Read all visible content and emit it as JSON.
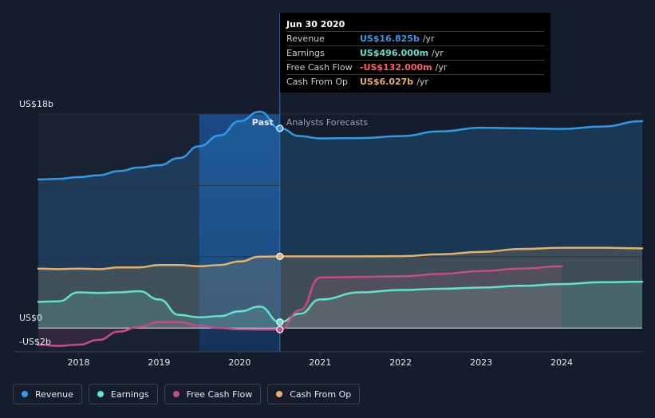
{
  "colors": {
    "revenue": "#2f9ae6",
    "earnings": "#5fe3cd",
    "free_cash_flow": "#c44d84",
    "cash_from_op": "#e5b06b",
    "negative": "#ff5f5f"
  },
  "tooltip": {
    "date": "Jun 30 2020",
    "rows": [
      {
        "label": "Revenue",
        "value": "US$16.825b",
        "unit": "/yr",
        "color": "#2f9ae6"
      },
      {
        "label": "Earnings",
        "value": "US$496.000m",
        "unit": "/yr",
        "color": "#5fe3cd"
      },
      {
        "label": "Free Cash Flow",
        "value": "-US$132.000m",
        "unit": "/yr",
        "color": "#ff5f5f"
      },
      {
        "label": "Cash From Op",
        "value": "US$6.027b",
        "unit": "/yr",
        "color": "#e5b06b"
      }
    ]
  },
  "legend": [
    {
      "label": "Revenue",
      "color": "#2f9ae6"
    },
    {
      "label": "Earnings",
      "color": "#5fe3cd"
    },
    {
      "label": "Free Cash Flow",
      "color": "#c44d84"
    },
    {
      "label": "Cash From Op",
      "color": "#e5b06b"
    }
  ],
  "chart_data": {
    "type": "area",
    "title": "",
    "xlabel": "",
    "ylabel": "",
    "xlim": [
      2017.5,
      2025.0
    ],
    "ylim": [
      -2,
      18
    ],
    "x_ticks": [
      2018,
      2019,
      2020,
      2021,
      2022,
      2023,
      2024
    ],
    "x_tick_labels": [
      "2018",
      "2019",
      "2020",
      "2021",
      "2022",
      "2023",
      "2024"
    ],
    "y_labels": [
      {
        "value": 18,
        "text": "US$18b"
      },
      {
        "value": 0,
        "text": "US$0"
      },
      {
        "value": -2,
        "text": "-US$2b"
      }
    ],
    "divider_x": 2020.5,
    "past_label": "Past",
    "forecast_label": "Analysts Forecasts",
    "highlight_start": 2019.5,
    "series": [
      {
        "name": "Revenue",
        "key": "revenue",
        "past": [
          [
            2017.5,
            12.5
          ],
          [
            2017.75,
            12.55
          ],
          [
            2018.0,
            12.7
          ],
          [
            2018.25,
            12.85
          ],
          [
            2018.5,
            13.2
          ],
          [
            2018.75,
            13.5
          ],
          [
            2019.0,
            13.7
          ],
          [
            2019.25,
            14.3
          ],
          [
            2019.5,
            15.3
          ],
          [
            2019.75,
            16.2
          ],
          [
            2020.0,
            17.4
          ],
          [
            2020.25,
            18.2
          ],
          [
            2020.5,
            16.8
          ]
        ],
        "forecast": [
          [
            2020.5,
            16.8
          ],
          [
            2020.75,
            16.15
          ],
          [
            2021.0,
            15.95
          ],
          [
            2021.5,
            15.98
          ],
          [
            2022.0,
            16.15
          ],
          [
            2022.5,
            16.55
          ],
          [
            2023.0,
            16.85
          ],
          [
            2023.5,
            16.8
          ],
          [
            2024.0,
            16.75
          ],
          [
            2024.5,
            16.95
          ],
          [
            2025.0,
            17.4
          ]
        ]
      },
      {
        "name": "Earnings",
        "key": "earnings",
        "past": [
          [
            2017.5,
            2.2
          ],
          [
            2017.75,
            2.25
          ],
          [
            2018.0,
            3.0
          ],
          [
            2018.25,
            2.95
          ],
          [
            2018.5,
            3.0
          ],
          [
            2018.75,
            3.1
          ],
          [
            2019.0,
            2.4
          ],
          [
            2019.25,
            1.1
          ],
          [
            2019.5,
            0.9
          ],
          [
            2019.75,
            1.0
          ],
          [
            2020.0,
            1.4
          ],
          [
            2020.25,
            1.8
          ],
          [
            2020.5,
            0.5
          ]
        ],
        "forecast": [
          [
            2020.5,
            0.5
          ],
          [
            2020.75,
            1.2
          ],
          [
            2021.0,
            2.4
          ],
          [
            2021.5,
            3.0
          ],
          [
            2022.0,
            3.2
          ],
          [
            2022.5,
            3.3
          ],
          [
            2023.0,
            3.4
          ],
          [
            2023.5,
            3.55
          ],
          [
            2024.0,
            3.7
          ],
          [
            2024.5,
            3.85
          ],
          [
            2025.0,
            3.9
          ]
        ]
      },
      {
        "name": "Free Cash Flow",
        "key": "free_cash_flow",
        "past": [
          [
            2017.5,
            -1.4
          ],
          [
            2017.75,
            -1.5
          ],
          [
            2018.0,
            -1.4
          ],
          [
            2018.25,
            -1.0
          ],
          [
            2018.5,
            -0.3
          ],
          [
            2018.75,
            0.1
          ],
          [
            2019.0,
            0.5
          ],
          [
            2019.25,
            0.5
          ],
          [
            2019.5,
            0.2
          ],
          [
            2019.75,
            0.0
          ],
          [
            2020.0,
            -0.1
          ],
          [
            2020.25,
            -0.12
          ],
          [
            2020.5,
            -0.13
          ]
        ],
        "forecast": [
          [
            2020.5,
            -0.13
          ],
          [
            2020.75,
            1.5
          ],
          [
            2021.0,
            4.25
          ],
          [
            2021.5,
            4.3
          ],
          [
            2022.0,
            4.35
          ],
          [
            2022.5,
            4.55
          ],
          [
            2023.0,
            4.8
          ],
          [
            2023.5,
            5.0
          ],
          [
            2024.0,
            5.2
          ]
        ]
      },
      {
        "name": "Cash From Op",
        "key": "cash_from_op",
        "past": [
          [
            2017.5,
            5.0
          ],
          [
            2017.75,
            4.95
          ],
          [
            2018.0,
            5.0
          ],
          [
            2018.25,
            4.95
          ],
          [
            2018.5,
            5.1
          ],
          [
            2018.75,
            5.1
          ],
          [
            2019.0,
            5.3
          ],
          [
            2019.25,
            5.3
          ],
          [
            2019.5,
            5.2
          ],
          [
            2019.75,
            5.3
          ],
          [
            2020.0,
            5.6
          ],
          [
            2020.25,
            6.0
          ],
          [
            2020.5,
            6.03
          ]
        ],
        "forecast": [
          [
            2020.5,
            6.03
          ],
          [
            2021.0,
            6.03
          ],
          [
            2021.5,
            6.03
          ],
          [
            2022.0,
            6.05
          ],
          [
            2022.5,
            6.2
          ],
          [
            2023.0,
            6.4
          ],
          [
            2023.5,
            6.65
          ],
          [
            2024.0,
            6.75
          ],
          [
            2024.5,
            6.75
          ],
          [
            2025.0,
            6.7
          ]
        ]
      }
    ]
  }
}
